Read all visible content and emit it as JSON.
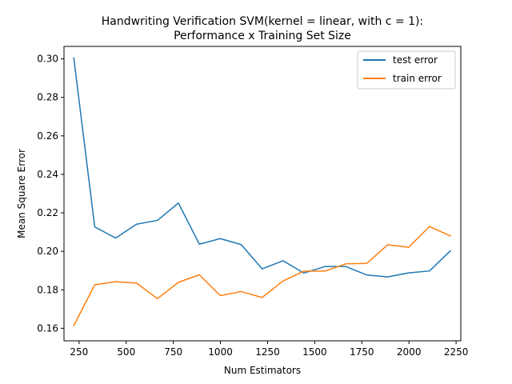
{
  "chart_data": {
    "type": "line",
    "title_lines": [
      "Handwriting Verification SVM(kernel = linear, with c = 1):",
      "Performance x Training Set Size"
    ],
    "xlabel": "Num Estimators",
    "ylabel": "Mean Square Error",
    "xlim": [
      170,
      2275
    ],
    "ylim": [
      0.1535,
      0.3065
    ],
    "xticks": [
      250,
      500,
      750,
      1000,
      1250,
      1500,
      1750,
      2000,
      2250
    ],
    "yticks": [
      0.16,
      0.18,
      0.2,
      0.22,
      0.24,
      0.26,
      0.28,
      0.3
    ],
    "ytick_labels": [
      "0.16",
      "0.18",
      "0.20",
      "0.22",
      "0.24",
      "0.26",
      "0.28",
      "0.30"
    ],
    "grid": false,
    "legend_position": "top-right",
    "x": [
      222,
      333,
      444,
      555,
      666,
      777,
      888,
      999,
      1110,
      1221,
      1332,
      1443,
      1554,
      1665,
      1776,
      1887,
      1998,
      2109,
      2220
    ],
    "series": [
      {
        "name": "test error",
        "color": "#1f77b4",
        "values": [
          0.3005,
          0.2127,
          0.2069,
          0.2141,
          0.2161,
          0.2251,
          0.2037,
          0.2066,
          0.2035,
          0.1909,
          0.1951,
          0.1887,
          0.1921,
          0.1921,
          0.1877,
          0.1867,
          0.1888,
          0.1898,
          0.2003
        ]
      },
      {
        "name": "train error",
        "color": "#ff7f0e",
        "values": [
          0.1614,
          0.1826,
          0.1842,
          0.1835,
          0.1754,
          0.1839,
          0.1878,
          0.177,
          0.1791,
          0.176,
          0.1846,
          0.1897,
          0.1897,
          0.1935,
          0.1937,
          0.2034,
          0.2021,
          0.2129,
          0.208
        ]
      }
    ]
  }
}
